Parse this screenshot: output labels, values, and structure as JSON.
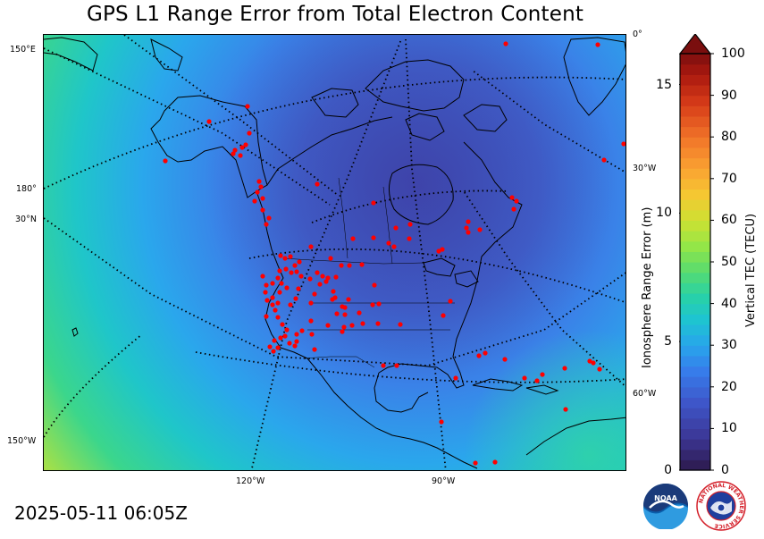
{
  "title": "GPS L1 Range Error from Total Electron Content",
  "timestamp": "2025-05-11 06:05Z",
  "map": {
    "graticule_labels": {
      "lon_150E": "150°E",
      "lon_180": "180°",
      "lat_30N": "30°N",
      "lon_150W": "150°W",
      "lon_0": "0°",
      "lon_30W": "30°W",
      "lon_60W": "60°W",
      "lon_120W": "120°W",
      "lon_90W": "90°W"
    },
    "station_color": "#ff0000",
    "coast_color": "#000000"
  },
  "colorbar": {
    "range_axis_title": "Ionosphere Range Error (m)",
    "tec_axis_title": "Vertical TEC (TECU)",
    "range_ticks": [
      "0",
      "5",
      "10",
      "15"
    ],
    "range_tick_values": [
      0,
      5,
      10,
      15
    ],
    "tec_ticks": [
      "0",
      "10",
      "20",
      "30",
      "40",
      "50",
      "60",
      "70",
      "80",
      "90",
      "100"
    ],
    "tec_tick_values": [
      0,
      10,
      20,
      30,
      40,
      50,
      60,
      70,
      80,
      90,
      100
    ],
    "tec_min": 0,
    "tec_max": 100,
    "range_max": 16.2,
    "extend": "max"
  },
  "logos": {
    "noaa_text": "NOAA",
    "nws_text": "NATIONAL WEATHER SERVICE"
  }
}
